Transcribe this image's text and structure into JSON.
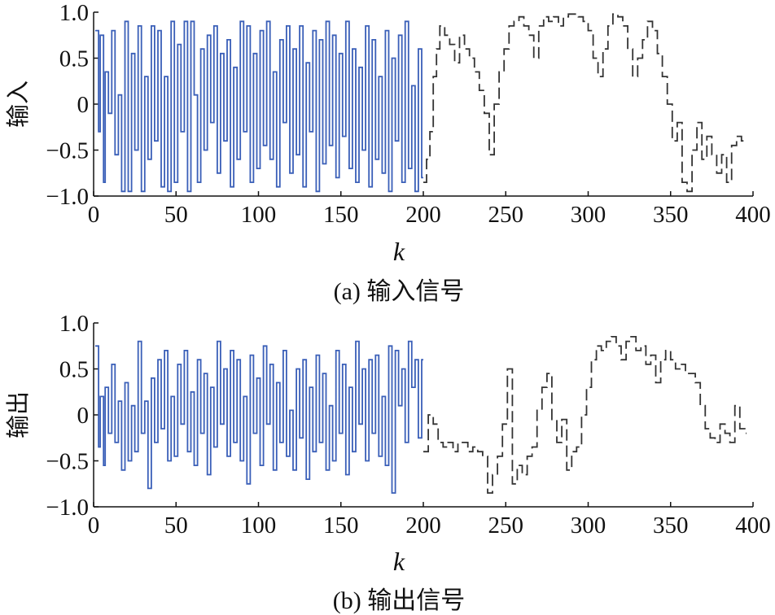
{
  "chart_data": [
    {
      "type": "line",
      "panel": "a",
      "caption": "(a) 输入信号",
      "ylabel": "输入",
      "xlabel": "k",
      "xlim": [
        0,
        400
      ],
      "ylim": [
        -1.0,
        1.0
      ],
      "xticks": [
        "0",
        "50",
        "100",
        "150",
        "200",
        "250",
        "300",
        "350",
        "400"
      ],
      "yticks": [
        "−1.0",
        "−0.5",
        "0",
        "0.5",
        "1.0"
      ],
      "grid": false,
      "series": [
        {
          "style": "solid-step",
          "color": "#3a5fb8",
          "x": [
            1,
            3,
            4,
            6,
            7,
            9,
            11,
            13,
            15,
            17,
            19,
            21,
            23,
            25,
            27,
            29,
            31,
            33,
            35,
            37,
            39,
            41,
            43,
            45,
            47,
            49,
            51,
            53,
            55,
            57,
            59,
            61,
            63,
            65,
            67,
            69,
            71,
            73,
            75,
            77,
            79,
            81,
            83,
            85,
            87,
            89,
            91,
            93,
            95,
            97,
            99,
            101,
            103,
            105,
            107,
            109,
            111,
            113,
            115,
            117,
            119,
            121,
            123,
            125,
            127,
            129,
            131,
            133,
            135,
            137,
            139,
            141,
            143,
            145,
            147,
            149,
            151,
            153,
            155,
            157,
            159,
            161,
            163,
            165,
            167,
            169,
            171,
            173,
            175,
            177,
            179,
            181,
            183,
            185,
            187,
            189,
            191,
            193,
            195,
            197,
            199
          ],
          "y": [
            0.8,
            -0.3,
            0.75,
            -0.85,
            0.35,
            -0.1,
            0.8,
            -0.55,
            0.1,
            -0.95,
            0.9,
            -0.95,
            0.55,
            -0.5,
            0.85,
            -0.95,
            0.3,
            -0.6,
            0.85,
            -0.4,
            0.8,
            -0.9,
            0.3,
            -0.95,
            0.9,
            -0.85,
            0.65,
            -0.3,
            0.9,
            -0.95,
            0.9,
            0.1,
            -0.85,
            0.6,
            -0.5,
            0.75,
            -0.2,
            0.85,
            -0.75,
            0.55,
            -0.4,
            0.7,
            -0.9,
            0.4,
            -0.6,
            0.9,
            -0.3,
            0.85,
            -0.85,
            0.55,
            -0.7,
            0.8,
            -0.45,
            0.9,
            -0.6,
            0.35,
            -0.9,
            0.7,
            -0.2,
            0.85,
            -0.75,
            0.6,
            -0.55,
            0.85,
            -0.9,
            0.45,
            -0.3,
            0.8,
            -0.95,
            0.7,
            -0.65,
            0.9,
            -0.45,
            0.75,
            -0.8,
            0.55,
            -0.35,
            0.9,
            -0.7,
            0.6,
            -0.85,
            0.4,
            -0.5,
            0.85,
            -0.9,
            0.7,
            -0.6,
            0.3,
            -0.75,
            0.8,
            -0.95,
            0.5,
            -0.4,
            0.75,
            -0.85,
            0.9,
            -0.7,
            0.2,
            -0.95,
            0.6,
            -0.8
          ]
        },
        {
          "style": "dashed-step",
          "color": "#333333",
          "x": [
            200,
            202,
            204,
            206,
            208,
            210,
            213,
            216,
            219,
            222,
            225,
            228,
            231,
            234,
            237,
            240,
            243,
            246,
            249,
            252,
            255,
            258,
            261,
            264,
            267,
            270,
            273,
            276,
            279,
            282,
            285,
            288,
            291,
            294,
            297,
            300,
            303,
            306,
            309,
            312,
            315,
            318,
            321,
            324,
            327,
            330,
            333,
            336,
            339,
            342,
            345,
            348,
            351,
            354,
            357,
            360,
            363,
            366,
            369,
            372,
            375,
            378,
            381,
            384,
            387,
            390,
            393,
            396
          ],
          "y": [
            -0.85,
            -0.6,
            -0.3,
            0.3,
            0.6,
            0.85,
            0.75,
            0.65,
            0.45,
            0.75,
            0.6,
            0.5,
            0.35,
            0.15,
            -0.1,
            -0.55,
            0.0,
            0.35,
            0.6,
            0.85,
            0.9,
            0.95,
            0.85,
            0.75,
            0.5,
            0.85,
            0.95,
            0.9,
            0.95,
            0.85,
            0.95,
            0.98,
            0.98,
            0.95,
            0.9,
            0.8,
            0.5,
            0.3,
            0.6,
            0.85,
            0.98,
            0.95,
            0.85,
            0.6,
            0.3,
            0.5,
            0.7,
            0.9,
            0.8,
            0.55,
            0.3,
            0.0,
            -0.4,
            -0.2,
            -0.85,
            -0.95,
            -0.5,
            -0.2,
            -0.6,
            -0.35,
            -0.55,
            -0.75,
            -0.55,
            -0.85,
            -0.45,
            -0.35,
            -0.4,
            -0.4
          ]
        }
      ]
    },
    {
      "type": "line",
      "panel": "b",
      "caption": "(b) 输出信号",
      "ylabel": "输出",
      "xlabel": "k",
      "xlim": [
        0,
        400
      ],
      "ylim": [
        -1.0,
        1.0
      ],
      "xticks": [
        "0",
        "50",
        "100",
        "150",
        "200",
        "250",
        "300",
        "350",
        "400"
      ],
      "yticks": [
        "−1.0",
        "−0.5",
        "0",
        "0.5",
        "1.0"
      ],
      "grid": false,
      "series": [
        {
          "style": "solid-step",
          "color": "#3a5fb8",
          "x": [
            1,
            3,
            4,
            6,
            7,
            9,
            11,
            13,
            15,
            17,
            19,
            21,
            23,
            25,
            27,
            29,
            31,
            33,
            35,
            37,
            39,
            41,
            43,
            45,
            47,
            49,
            51,
            53,
            55,
            57,
            59,
            61,
            63,
            65,
            67,
            69,
            71,
            73,
            75,
            77,
            79,
            81,
            83,
            85,
            87,
            89,
            91,
            93,
            95,
            97,
            99,
            101,
            103,
            105,
            107,
            109,
            111,
            113,
            115,
            117,
            119,
            121,
            123,
            125,
            127,
            129,
            131,
            133,
            135,
            137,
            139,
            141,
            143,
            145,
            147,
            149,
            151,
            153,
            155,
            157,
            159,
            161,
            163,
            165,
            167,
            169,
            171,
            173,
            175,
            177,
            179,
            181,
            183,
            185,
            187,
            189,
            191,
            193,
            195,
            197,
            199
          ],
          "y": [
            0.75,
            -0.35,
            0.2,
            -0.55,
            0.3,
            -0.2,
            0.55,
            -0.3,
            0.15,
            -0.6,
            0.35,
            -0.5,
            0.1,
            -0.4,
            0.8,
            -0.2,
            0.15,
            -0.8,
            0.4,
            -0.3,
            0.6,
            -0.15,
            0.7,
            -0.5,
            0.2,
            -0.45,
            0.55,
            -0.1,
            0.7,
            -0.4,
            0.25,
            -0.55,
            0.6,
            -0.2,
            0.45,
            -0.65,
            0.3,
            -0.35,
            0.8,
            -0.1,
            0.5,
            -0.45,
            0.7,
            -0.3,
            0.6,
            -0.5,
            0.2,
            -0.75,
            0.65,
            -0.2,
            0.4,
            -0.55,
            0.75,
            -0.1,
            0.55,
            -0.6,
            0.35,
            -0.3,
            0.7,
            -0.45,
            0.05,
            -0.6,
            0.5,
            -0.25,
            0.6,
            -0.7,
            0.3,
            -0.4,
            0.65,
            -0.3,
            0.45,
            -0.6,
            0.1,
            -0.5,
            0.7,
            -0.2,
            0.55,
            -0.65,
            0.3,
            -0.4,
            0.8,
            -0.1,
            0.5,
            -0.5,
            0.6,
            -0.2,
            0.65,
            -0.45,
            0.2,
            -0.55,
            0.75,
            -0.85,
            0.7,
            0.1,
            0.5,
            -0.3,
            0.8,
            0.3,
            0.6,
            -0.25,
            0.6
          ]
        },
        {
          "style": "dashed-step",
          "color": "#333333",
          "x": [
            200,
            203,
            206,
            209,
            212,
            215,
            218,
            221,
            224,
            227,
            230,
            233,
            236,
            239,
            242,
            245,
            248,
            251,
            254,
            257,
            260,
            263,
            266,
            269,
            272,
            275,
            278,
            281,
            284,
            287,
            290,
            293,
            296,
            299,
            302,
            305,
            308,
            311,
            314,
            317,
            320,
            323,
            326,
            329,
            332,
            335,
            338,
            341,
            344,
            347,
            350,
            353,
            356,
            359,
            362,
            365,
            368,
            371,
            374,
            377,
            380,
            383,
            386,
            389,
            392,
            395
          ],
          "y": [
            -0.4,
            0.0,
            -0.1,
            -0.3,
            -0.35,
            -0.3,
            -0.4,
            -0.3,
            -0.3,
            -0.4,
            -0.35,
            -0.4,
            -0.45,
            -0.85,
            -0.65,
            -0.45,
            -0.1,
            0.5,
            -0.75,
            -0.55,
            -0.65,
            -0.45,
            -0.35,
            0.05,
            0.3,
            0.45,
            -0.05,
            -0.3,
            -0.05,
            -0.6,
            -0.4,
            -0.35,
            0.0,
            0.3,
            0.6,
            0.75,
            0.7,
            0.8,
            0.85,
            0.75,
            0.6,
            0.8,
            0.85,
            0.7,
            0.75,
            0.55,
            0.65,
            0.35,
            0.6,
            0.7,
            0.6,
            0.5,
            0.55,
            0.45,
            0.45,
            0.35,
            0.1,
            -0.15,
            -0.25,
            -0.3,
            -0.1,
            -0.2,
            -0.3,
            0.1,
            -0.15,
            -0.2
          ]
        }
      ]
    }
  ]
}
